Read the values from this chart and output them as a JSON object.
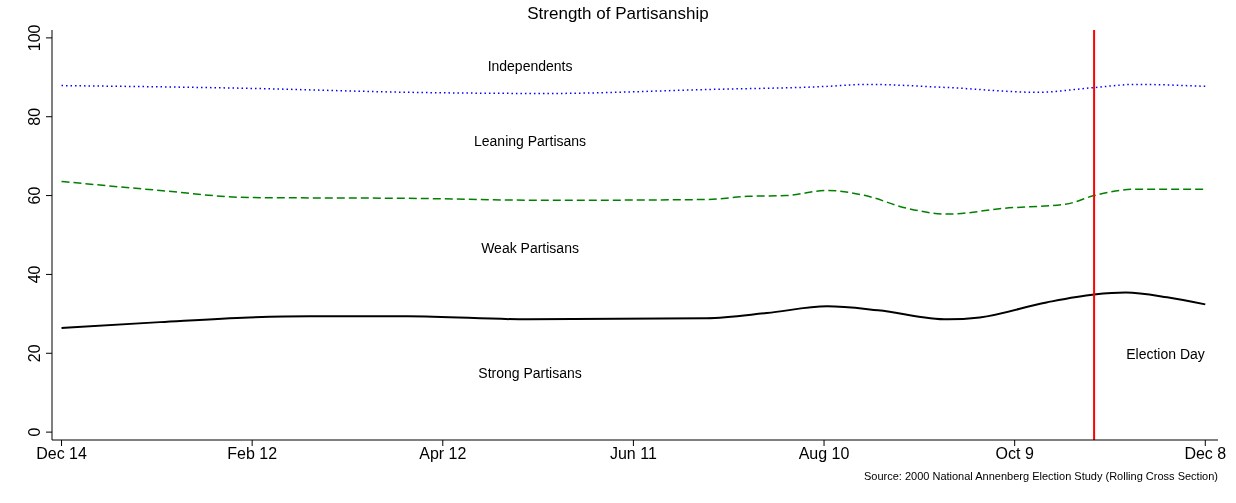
{
  "chart_data": {
    "type": "line",
    "title": "Strength of Partisanship",
    "xlim": [
      "1999-12-11",
      "2000-12-12"
    ],
    "xticks": [
      {
        "value": "1999-12-14",
        "label": "Dec 14"
      },
      {
        "value": "2000-02-12",
        "label": "Feb 12"
      },
      {
        "value": "2000-04-12",
        "label": "Apr 12"
      },
      {
        "value": "2000-06-11",
        "label": "Jun 11"
      },
      {
        "value": "2000-08-10",
        "label": "Aug 10"
      },
      {
        "value": "2000-10-09",
        "label": "Oct 9"
      },
      {
        "value": "2000-12-08",
        "label": "Dec 8"
      }
    ],
    "ylim": [
      -2,
      102
    ],
    "yticks": [
      0,
      20,
      40,
      60,
      80,
      100
    ],
    "grid": false,
    "marker": "none",
    "series": [
      {
        "color": "#000000",
        "line_style": "solid",
        "x": [
          "1999-12-14",
          "2000-01-14",
          "2000-02-11",
          "2000-03-01",
          "2000-04-01",
          "2000-05-09",
          "2000-07-04",
          "2000-07-23",
          "2000-08-11",
          "2000-08-27",
          "2000-09-18",
          "2000-09-28",
          "2000-10-19",
          "2000-11-03",
          "2000-11-13",
          "2000-11-26",
          "2000-12-08"
        ],
        "values": [
          26.4,
          27.9,
          29.1,
          29.4,
          29.4,
          28.6,
          28.9,
          30.2,
          31.9,
          30.9,
          28.6,
          29.1,
          32.9,
          34.9,
          35.4,
          34.2,
          32.4
        ]
      },
      {
        "color": "#008000",
        "line_style": "dashed",
        "x": [
          "1999-12-14",
          "2000-01-14",
          "2000-02-11",
          "2000-04-01",
          "2000-05-15",
          "2000-07-04",
          "2000-07-17",
          "2000-07-29",
          "2000-08-11",
          "2000-08-23",
          "2000-09-05",
          "2000-09-18",
          "2000-10-06",
          "2000-10-25",
          "2000-11-03",
          "2000-11-16",
          "2000-12-08"
        ],
        "values": [
          63.6,
          61.3,
          59.5,
          59.3,
          58.8,
          59.0,
          59.8,
          60,
          61.3,
          60,
          56.8,
          55.3,
          56.8,
          57.8,
          60,
          61.6,
          61.6
        ]
      },
      {
        "color": "#0000ff",
        "line_style": "dotted",
        "x": [
          "1999-12-14",
          "2000-02-11",
          "2000-04-01",
          "2000-05-15",
          "2000-07-04",
          "2000-08-11",
          "2000-08-23",
          "2000-09-18",
          "2000-10-16",
          "2000-11-03",
          "2000-11-16",
          "2000-12-08"
        ],
        "values": [
          87.9,
          87.2,
          86.2,
          85.9,
          86.9,
          87.7,
          88.2,
          87.4,
          86.2,
          87.4,
          88.2,
          87.7
        ]
      }
    ],
    "ref_lines": [
      {
        "axis": "x",
        "value": "2000-11-03",
        "color": "#ff0000"
      }
    ],
    "annotations": [
      "Independents",
      "Leaning Partisans",
      "Weak Partisans",
      "Strong Partisans",
      "Election Day",
      "Source:  2000 National Annenberg Election Study (Rolling Cross Section)"
    ]
  }
}
